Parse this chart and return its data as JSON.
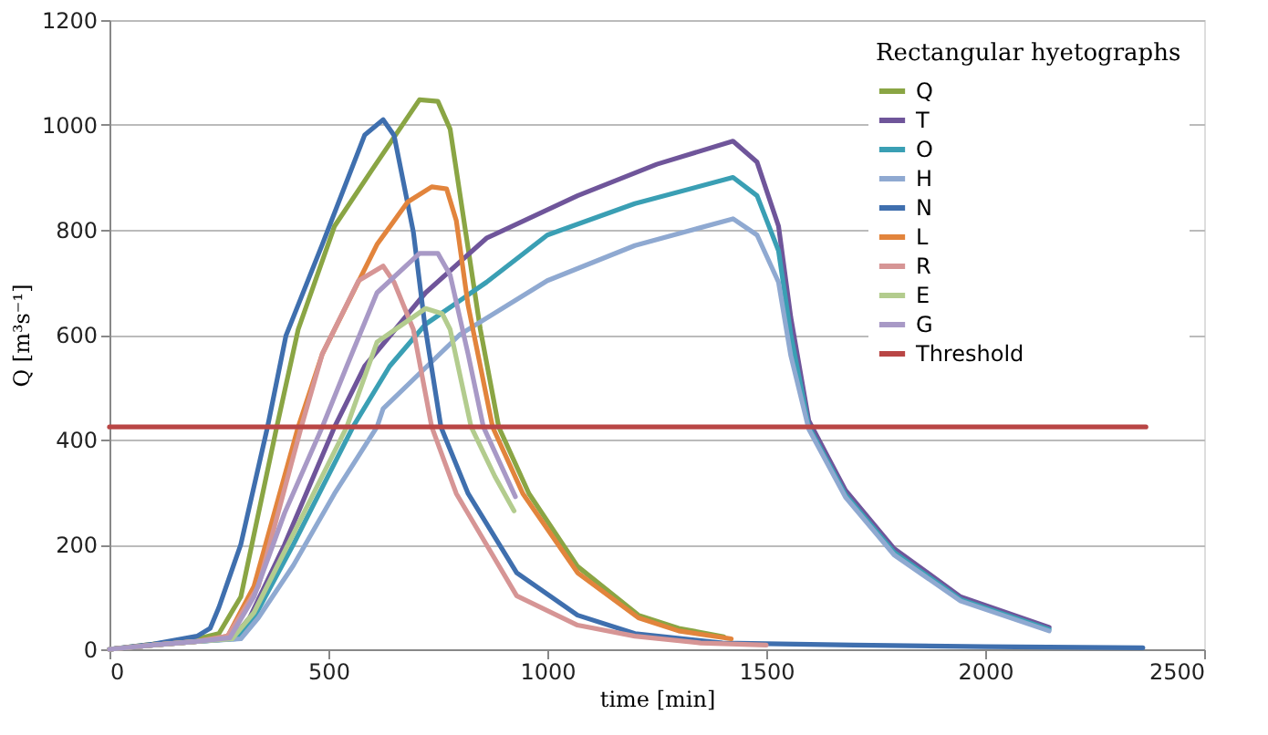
{
  "chart_data": {
    "type": "line",
    "xlabel": "time [min]",
    "ylabel": "Q [m³s⁻¹]",
    "legend_title": "Rectangular hyetographs",
    "xlim": [
      0,
      2500
    ],
    "xticks": [
      0,
      500,
      1000,
      1500,
      2000,
      2500
    ],
    "ylim": [
      0,
      1200
    ],
    "yticks": [
      0,
      200,
      400,
      600,
      800,
      1000,
      1200
    ],
    "grid": "y",
    "legend": "top right",
    "series": [
      {
        "name": "Q",
        "color": "#8aa544",
        "x": [
          0,
          100,
          200,
          250,
          300,
          382,
          431,
          514,
          597,
          708,
          750,
          778,
          847,
          889,
          958,
          1069,
          1208,
          1300,
          1403
        ],
        "values": [
          0,
          10,
          20,
          30,
          100,
          424,
          610,
          807,
          911,
          1048,
          1045,
          992,
          610,
          424,
          297,
          158,
          65,
          40,
          24
        ]
      },
      {
        "name": "T",
        "color": "#6f559a",
        "x": [
          0,
          100,
          200,
          280,
          320,
          400,
          514,
          583,
          722,
          861,
          1069,
          1250,
          1424,
          1479,
          1528,
          1556,
          1597,
          1681,
          1792,
          1944,
          2146
        ],
        "values": [
          0,
          8,
          15,
          20,
          60,
          200,
          424,
          540,
          680,
          784,
          865,
          925,
          969,
          929,
          807,
          633,
          436,
          303,
          192,
          100,
          42
        ]
      },
      {
        "name": "O",
        "color": "#3a9fb4",
        "x": [
          0,
          100,
          200,
          290,
          330,
          420,
          556,
          640,
          722,
          861,
          1000,
          1200,
          1424,
          1479,
          1528,
          1556,
          1597,
          1681,
          1792,
          1944,
          2146
        ],
        "values": [
          0,
          8,
          15,
          20,
          60,
          200,
          424,
          540,
          620,
          700,
          790,
          850,
          900,
          865,
          760,
          600,
          425,
          295,
          185,
          95,
          38
        ]
      },
      {
        "name": "H",
        "color": "#8fa9d1",
        "x": [
          0,
          100,
          200,
          300,
          340,
          420,
          514,
          611,
          625,
          800,
          1000,
          1200,
          1424,
          1479,
          1528,
          1556,
          1597,
          1681,
          1792,
          1944,
          2146
        ],
        "values": [
          0,
          8,
          15,
          20,
          60,
          160,
          297,
          424,
          459,
          600,
          703,
          770,
          821,
          790,
          700,
          560,
          420,
          290,
          180,
          92,
          35
        ]
      },
      {
        "name": "N",
        "color": "#3f6fae",
        "x": [
          0,
          100,
          200,
          230,
          250,
          300,
          361,
          403,
          486,
          583,
          625,
          650,
          694,
          720,
          757,
          819,
          930,
          1069,
          1200,
          1400,
          1700,
          2000,
          2360
        ],
        "values": [
          0,
          10,
          25,
          40,
          80,
          200,
          424,
          598,
          772,
          981,
          1010,
          980,
          796,
          620,
          424,
          297,
          146,
          65,
          30,
          12,
          8,
          5,
          3
        ]
      },
      {
        "name": "L",
        "color": "#e2843c",
        "x": [
          0,
          100,
          200,
          270,
          330,
          431,
          486,
          611,
          681,
          736,
          770,
          792,
          819,
          875,
          944,
          1069,
          1208,
          1300,
          1420
        ],
        "values": [
          0,
          8,
          15,
          25,
          120,
          424,
          563,
          772,
          853,
          882,
          878,
          818,
          656,
          424,
          297,
          146,
          60,
          35,
          20
        ]
      },
      {
        "name": "R",
        "color": "#d69595",
        "x": [
          0,
          100,
          200,
          270,
          340,
          438,
          486,
          569,
          625,
          650,
          694,
          736,
          792,
          930,
          1069,
          1200,
          1350,
          1500
        ],
        "values": [
          0,
          8,
          15,
          25,
          120,
          424,
          563,
          703,
          731,
          700,
          610,
          424,
          297,
          102,
          46,
          25,
          12,
          8
        ]
      },
      {
        "name": "E",
        "color": "#b3cc8e",
        "x": [
          0,
          100,
          200,
          280,
          330,
          420,
          542,
          611,
          722,
          760,
          778,
          826,
          880,
          924
        ],
        "values": [
          0,
          8,
          15,
          20,
          70,
          220,
          424,
          586,
          650,
          640,
          610,
          424,
          330,
          264
        ]
      },
      {
        "name": "G",
        "color": "#a899c6",
        "x": [
          0,
          100,
          200,
          275,
          330,
          400,
          486,
          542,
          611,
          708,
          750,
          778,
          819,
          854,
          927
        ],
        "values": [
          0,
          8,
          15,
          22,
          100,
          260,
          424,
          540,
          680,
          755,
          755,
          714,
          563,
          424,
          291
        ]
      },
      {
        "name": "Threshold",
        "color": "#b94645",
        "x": [
          0,
          2367
        ],
        "values": [
          424,
          424
        ]
      }
    ]
  }
}
